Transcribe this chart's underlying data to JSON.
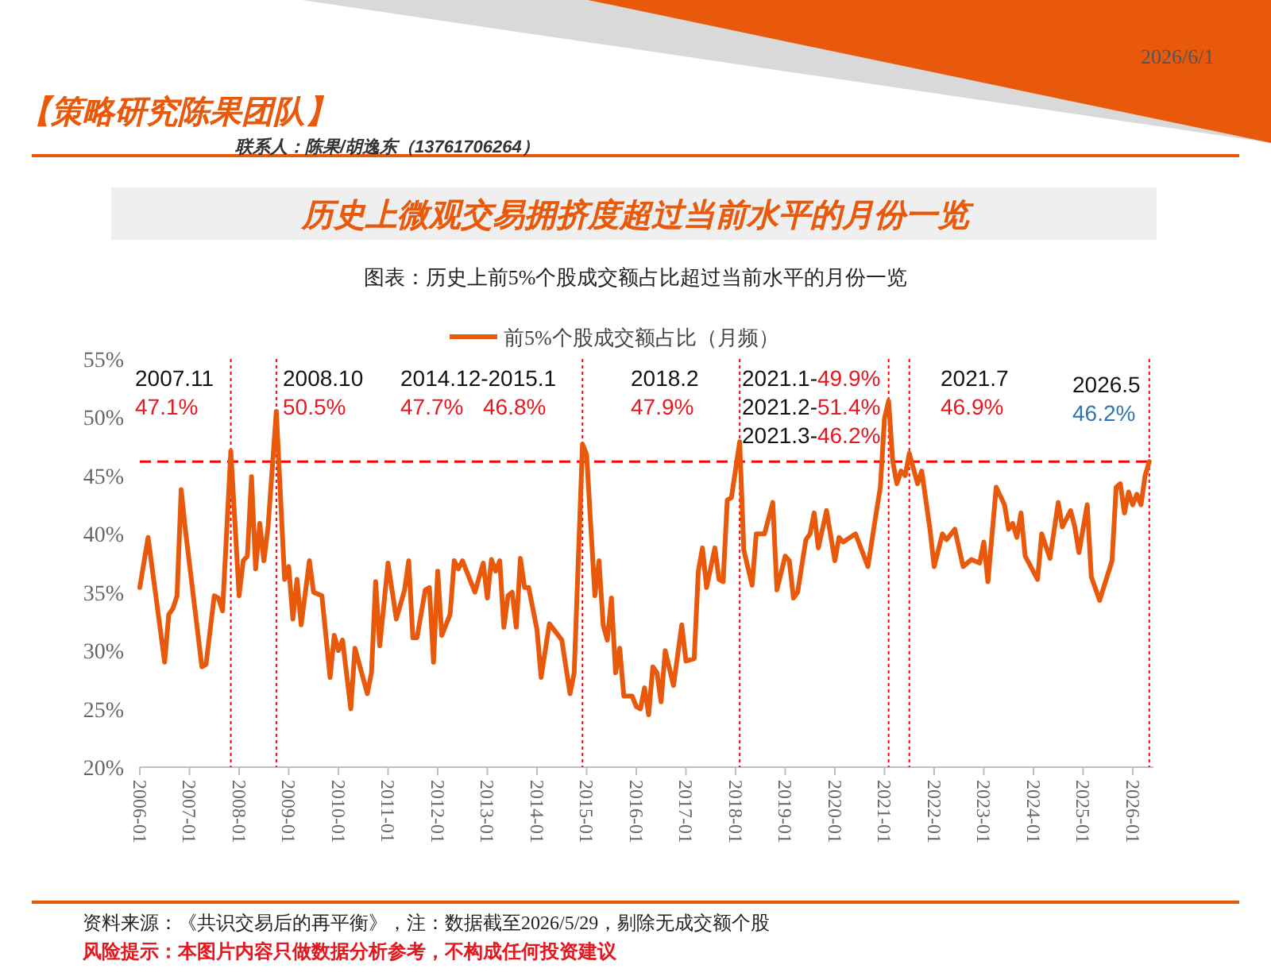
{
  "chart_data": {
    "type": "line",
    "title": "历史上微观交易拥挤度超过当前水平的月份一览",
    "subtitle": "图表：历史上前5%个股成交额占比超过当前水平的月份一览",
    "x": [
      "2006-01",
      "2006-03",
      "2006-07",
      "2006-08",
      "2006-09",
      "2006-10",
      "2006-11",
      "2006-12",
      "2007-04",
      "2007-05",
      "2007-07",
      "2007-08",
      "2007-09",
      "2007-11",
      "2008-01",
      "2008-02",
      "2008-03",
      "2008-04",
      "2008-05",
      "2008-06",
      "2008-07",
      "2008-08",
      "2008-10",
      "2008-12",
      "2009-01",
      "2009-02",
      "2009-03",
      "2009-04",
      "2009-06",
      "2009-07",
      "2009-09",
      "2009-11",
      "2009-12",
      "2010-01",
      "2010-02",
      "2010-04",
      "2010-05",
      "2010-08",
      "2010-09",
      "2010-10",
      "2010-11",
      "2011-01",
      "2011-03",
      "2011-05",
      "2011-06",
      "2011-07",
      "2011-08",
      "2011-10",
      "2011-11",
      "2011-12",
      "2012-01",
      "2012-02",
      "2012-04",
      "2012-05",
      "2012-06",
      "2012-07",
      "2012-10",
      "2012-12",
      "2013-01",
      "2013-02",
      "2013-03",
      "2013-04",
      "2013-05",
      "2013-06",
      "2013-07",
      "2013-08",
      "2013-09",
      "2013-10",
      "2013-11",
      "2014-01",
      "2014-02",
      "2014-04",
      "2014-07",
      "2014-09",
      "2014-10",
      "2014-12",
      "2015-01",
      "2015-03",
      "2015-04",
      "2015-05",
      "2015-06",
      "2015-07",
      "2015-08",
      "2015-09",
      "2015-10",
      "2015-12",
      "2016-01",
      "2016-02",
      "2016-03",
      "2016-04",
      "2016-05",
      "2016-06",
      "2016-07",
      "2016-08",
      "2016-10",
      "2016-12",
      "2017-01",
      "2017-03",
      "2017-04",
      "2017-05",
      "2017-06",
      "2017-08",
      "2017-09",
      "2017-10",
      "2017-11",
      "2017-12",
      "2018-02",
      "2018-03",
      "2018-05",
      "2018-06",
      "2018-08",
      "2018-10",
      "2018-11",
      "2019-01",
      "2019-02",
      "2019-03",
      "2019-04",
      "2019-06",
      "2019-07",
      "2019-08",
      "2019-09",
      "2019-11",
      "2020-01",
      "2020-02",
      "2020-03",
      "2020-06",
      "2020-09",
      "2020-11",
      "2020-12",
      "2021-01",
      "2021-02",
      "2021-03",
      "2021-04",
      "2021-05",
      "2021-06",
      "2021-07",
      "2021-09",
      "2021-10",
      "2021-12",
      "2022-01",
      "2022-03",
      "2022-04",
      "2022-06",
      "2022-08",
      "2022-10",
      "2022-12",
      "2023-01",
      "2023-02",
      "2023-04",
      "2023-06",
      "2023-07",
      "2023-08",
      "2023-09",
      "2023-10",
      "2023-11",
      "2024-02",
      "2024-03",
      "2024-05",
      "2024-07",
      "2024-08",
      "2024-10",
      "2024-11",
      "2024-12",
      "2025-02",
      "2025-03",
      "2025-05",
      "2025-08",
      "2025-09",
      "2025-10",
      "2025-11",
      "2025-12",
      "2026-01",
      "2026-02",
      "2026-03",
      "2026-04",
      "2026-05"
    ],
    "series": [
      {
        "name": "前5%个股成交额占比（月频）",
        "color": "#e8590c",
        "values": [
          35.4,
          39.7,
          29.0,
          33.1,
          33.6,
          34.7,
          43.8,
          40.4,
          28.6,
          28.8,
          34.7,
          34.5,
          33.4,
          47.1,
          34.7,
          37.7,
          38.1,
          44.9,
          37.0,
          40.9,
          37.7,
          40.6,
          50.5,
          36.1,
          37.2,
          32.7,
          36.1,
          32.2,
          37.7,
          35.0,
          34.7,
          27.7,
          31.3,
          30.0,
          30.9,
          25.0,
          30.2,
          26.3,
          28.1,
          35.9,
          30.4,
          37.5,
          32.7,
          35.2,
          37.7,
          31.1,
          31.1,
          35.2,
          35.4,
          29.0,
          36.8,
          31.3,
          33.1,
          37.7,
          37.0,
          37.7,
          35.0,
          37.5,
          34.5,
          37.8,
          36.8,
          37.7,
          32.0,
          34.7,
          35.0,
          32.0,
          37.9,
          35.4,
          35.4,
          31.8,
          27.7,
          32.3,
          30.9,
          26.3,
          28.1,
          47.7,
          46.8,
          34.7,
          37.7,
          32.2,
          30.9,
          34.5,
          28.1,
          30.2,
          26.1,
          26.1,
          25.2,
          25.0,
          26.8,
          24.5,
          28.6,
          28.1,
          25.6,
          30.0,
          27.0,
          32.2,
          29.1,
          29.3,
          36.8,
          38.8,
          35.4,
          38.8,
          36.1,
          35.9,
          42.9,
          43.1,
          47.9,
          38.6,
          35.6,
          40.0,
          40.0,
          42.7,
          35.2,
          38.1,
          37.7,
          34.5,
          35.0,
          39.5,
          40.0,
          41.8,
          38.8,
          42.0,
          37.7,
          39.7,
          39.3,
          40.0,
          37.2,
          41.8,
          44.0,
          49.9,
          51.4,
          46.2,
          44.3,
          45.4,
          45.0,
          46.9,
          44.3,
          45.4,
          40.4,
          37.2,
          40.0,
          39.5,
          40.4,
          37.2,
          37.8,
          37.5,
          39.3,
          35.9,
          44.0,
          42.5,
          40.4,
          40.9,
          39.7,
          41.8,
          38.1,
          36.1,
          40.0,
          37.9,
          42.7,
          40.6,
          42.0,
          40.6,
          38.4,
          42.5,
          36.3,
          34.3,
          37.7,
          44.0,
          44.3,
          41.8,
          43.6,
          42.5,
          43.4,
          42.5,
          45.0,
          46.2
        ]
      }
    ],
    "xlim": [
      "2006-01",
      "2026-06"
    ],
    "xticks": [
      "2006-01",
      "2007-01",
      "2008-01",
      "2009-01",
      "2010-01",
      "2011-01",
      "2012-01",
      "2013-01",
      "2014-01",
      "2015-01",
      "2016-01",
      "2017-01",
      "2018-01",
      "2019-01",
      "2020-01",
      "2021-01",
      "2022-01",
      "2023-01",
      "2024-01",
      "2025-01",
      "2026-01"
    ],
    "ylim": [
      20,
      55
    ],
    "yticks": [
      {
        "value": 20,
        "label": "20%"
      },
      {
        "value": 25,
        "label": "25%"
      },
      {
        "value": 30,
        "label": "30%"
      },
      {
        "value": 35,
        "label": "35%"
      },
      {
        "value": 40,
        "label": "40%"
      },
      {
        "value": 45,
        "label": "45%"
      },
      {
        "value": 50,
        "label": "50%"
      },
      {
        "value": 55,
        "label": "55%"
      }
    ],
    "grid": false,
    "legend": "top",
    "marker": "none",
    "line_style": "solid",
    "ref_lines": [
      {
        "axis": "y",
        "value": 46.2,
        "color": "#ff0000",
        "line_style": "dashed"
      },
      {
        "axis": "x",
        "value": "2007-11",
        "color": "#ff0000",
        "line_style": "dotted"
      },
      {
        "axis": "x",
        "value": "2008-10",
        "color": "#ff0000",
        "line_style": "dotted"
      },
      {
        "axis": "x",
        "value": "2014-12",
        "color": "#ff0000",
        "line_style": "dotted"
      },
      {
        "axis": "x",
        "value": "2018-02",
        "color": "#ff0000",
        "line_style": "dotted"
      },
      {
        "axis": "x",
        "value": "2021-02",
        "color": "#ff0000",
        "line_style": "dotted"
      },
      {
        "axis": "x",
        "value": "2021-07",
        "color": "#ff0000",
        "line_style": "dotted"
      },
      {
        "axis": "x",
        "value": "2026-05",
        "color": "#ff0000",
        "line_style": "dotted"
      }
    ],
    "annotations": [
      "2026/6/1",
      "【策略研究陈果团队】",
      "联系人：陈果/胡逸东（13761706264）",
      "2007.11",
      "47.1%",
      "2008.10",
      "50.5%",
      "2014.12-2015.1",
      "47.7%",
      "46.8%",
      "2018.2",
      "47.9%",
      "2021.1-",
      "49.9%",
      "2021.2-",
      "51.4%",
      "2021.3-",
      "46.2%",
      "2021.7",
      "46.9%",
      "2026.5",
      "46.2%",
      "资料来源：《共识交易后的再平衡》，注：数据截至2026/5/29，剔除无成交额个股",
      "风险提示：本图片内容只做数据分析参考，不构成任何投资建议"
    ]
  }
}
